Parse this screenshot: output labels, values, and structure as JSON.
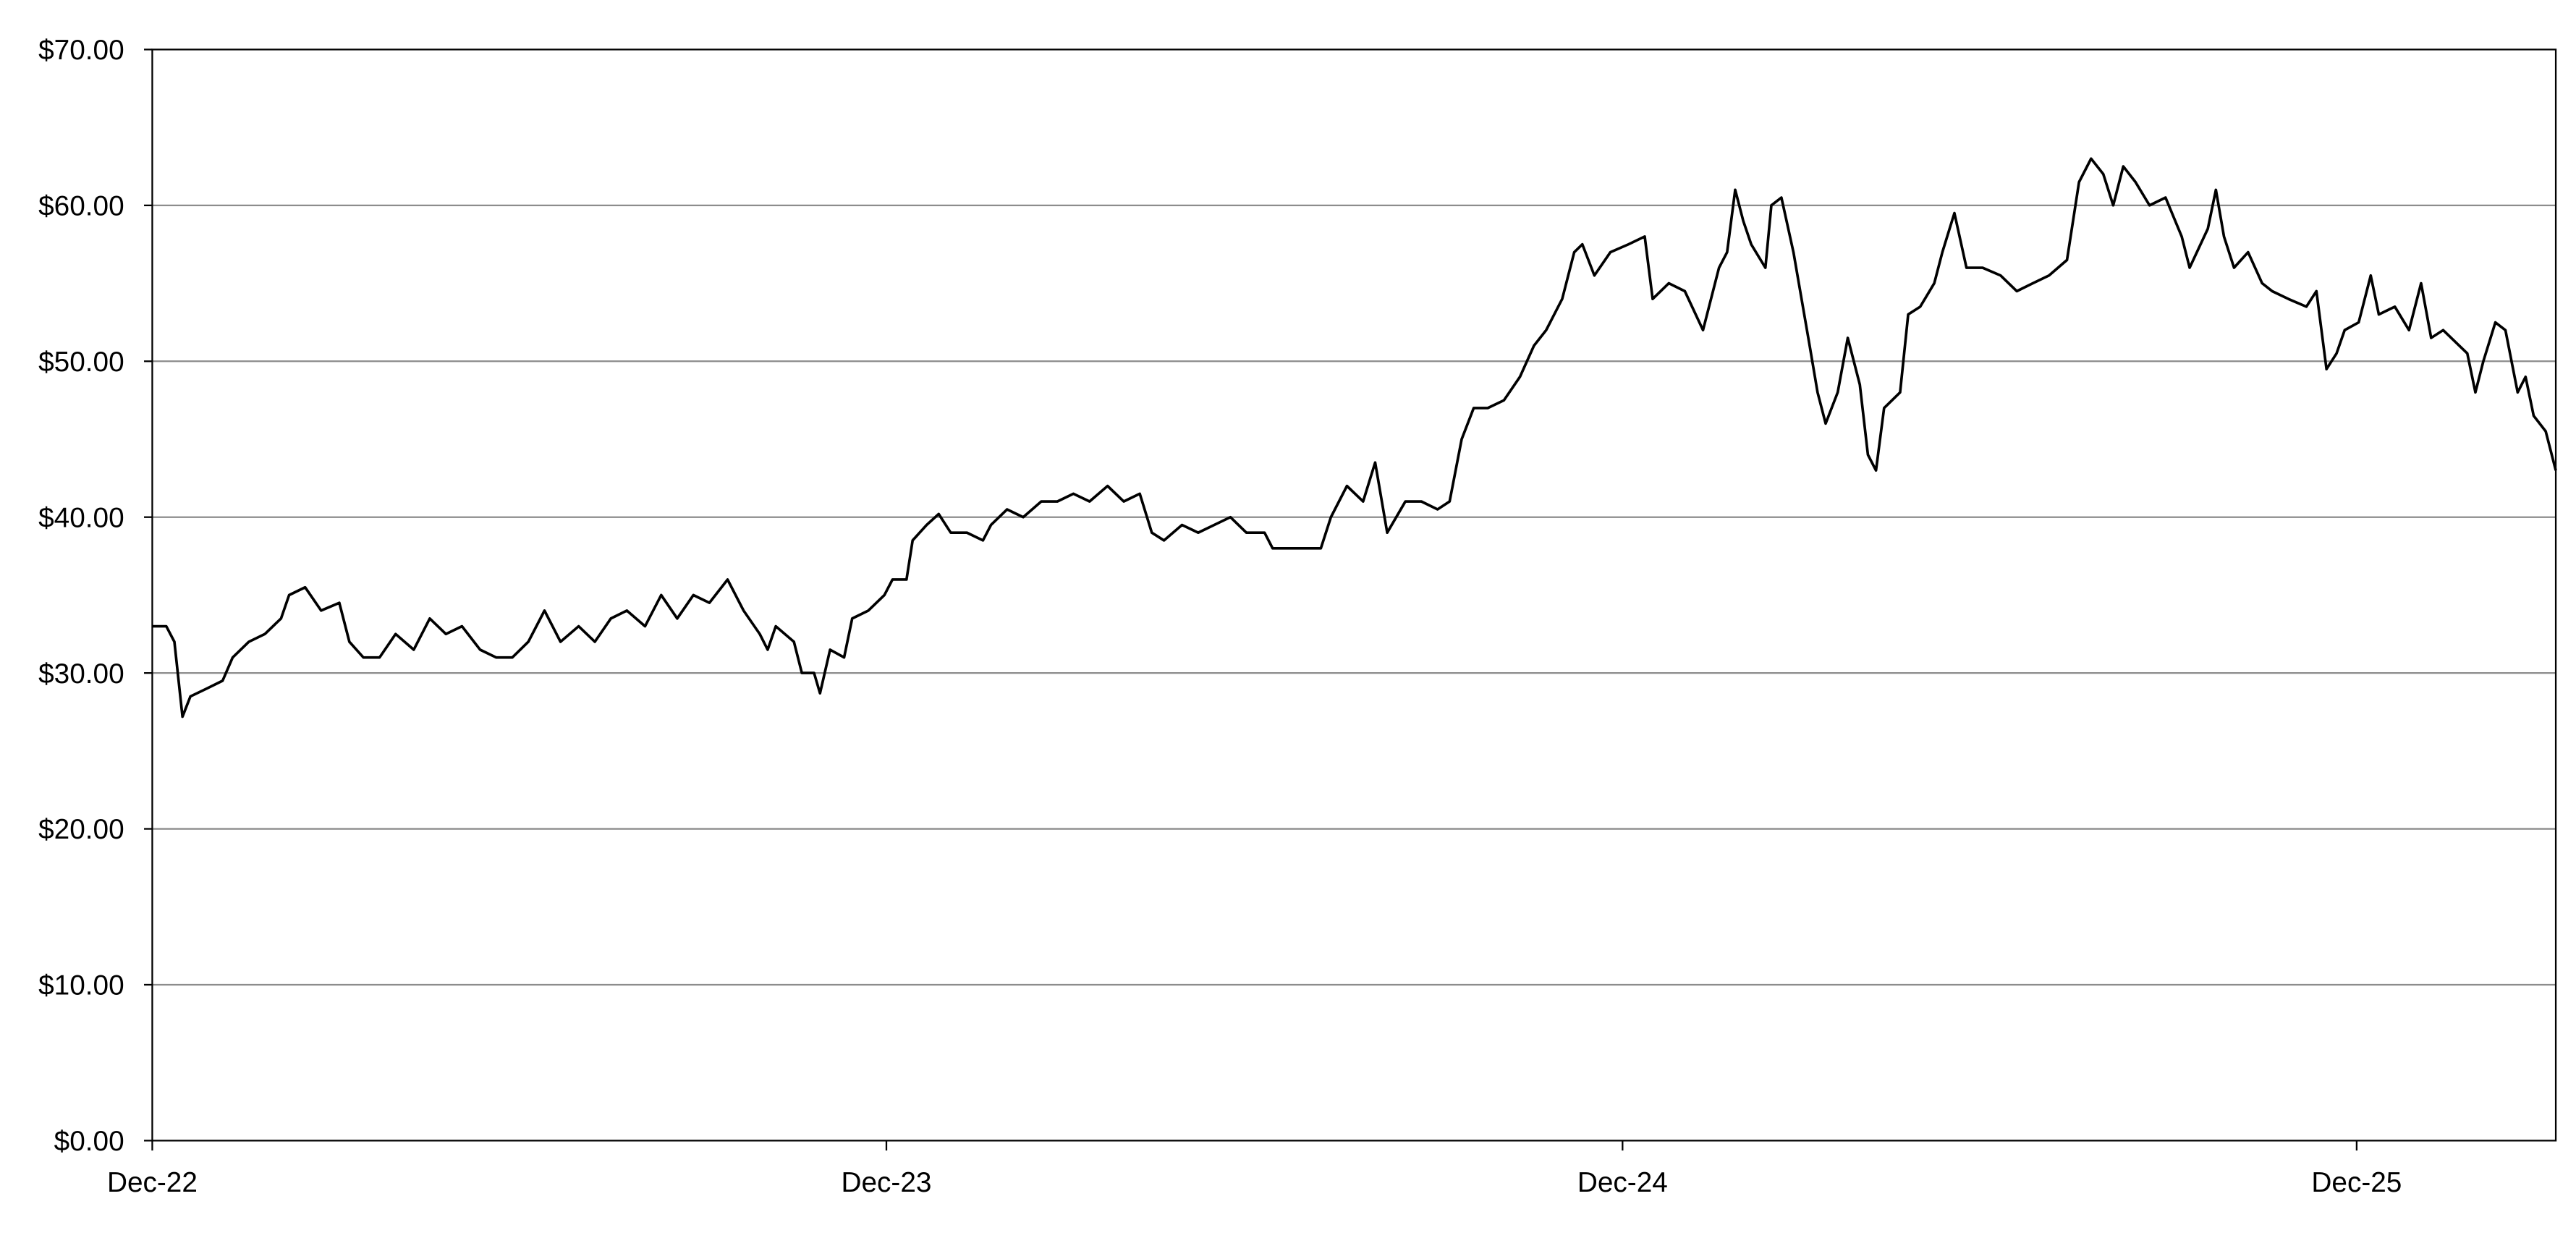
{
  "chart_data": {
    "type": "line",
    "title": "",
    "xlabel": "",
    "ylabel": "",
    "ylim": [
      0,
      70
    ],
    "xlim": [
      "2022-12-01",
      "2026-03-10"
    ],
    "grid": "horizontal",
    "line_color": "#000000",
    "grid_color": "#8c8c8c",
    "y_ticks": [
      0,
      10,
      20,
      30,
      40,
      50,
      60,
      70
    ],
    "y_tick_labels": [
      "$0.00",
      "$10.00",
      "$20.00",
      "$30.00",
      "$40.00",
      "$50.00",
      "$60.00",
      "$70.00"
    ],
    "x_ticks": [
      "2022-12-01",
      "2023-12-01",
      "2024-12-01",
      "2025-12-01"
    ],
    "x_tick_labels": [
      "Dec-22",
      "Dec-23",
      "Dec-24",
      "Dec-25"
    ],
    "series": [
      {
        "points": [
          [
            "2022-12-01",
            33
          ],
          [
            "2022-12-08",
            33
          ],
          [
            "2022-12-12",
            32
          ],
          [
            "2022-12-16",
            27.2
          ],
          [
            "2022-12-20",
            28.5
          ],
          [
            "2022-12-28",
            29
          ],
          [
            "2023-01-05",
            29.5
          ],
          [
            "2023-01-10",
            31
          ],
          [
            "2023-01-18",
            32
          ],
          [
            "2023-01-26",
            32.5
          ],
          [
            "2023-02-03",
            33.5
          ],
          [
            "2023-02-07",
            35
          ],
          [
            "2023-02-15",
            35.5
          ],
          [
            "2023-02-23",
            34
          ],
          [
            "2023-03-04",
            34.5
          ],
          [
            "2023-03-09",
            32
          ],
          [
            "2023-03-16",
            31
          ],
          [
            "2023-03-24",
            31
          ],
          [
            "2023-04-01",
            32.5
          ],
          [
            "2023-04-10",
            31.5
          ],
          [
            "2023-04-18",
            33.5
          ],
          [
            "2023-04-26",
            32.5
          ],
          [
            "2023-05-04",
            33
          ],
          [
            "2023-05-13",
            31.5
          ],
          [
            "2023-05-21",
            31
          ],
          [
            "2023-05-29",
            31
          ],
          [
            "2023-06-06",
            32
          ],
          [
            "2023-06-14",
            34
          ],
          [
            "2023-06-22",
            32
          ],
          [
            "2023-07-01",
            33
          ],
          [
            "2023-07-09",
            32
          ],
          [
            "2023-07-17",
            33.5
          ],
          [
            "2023-07-25",
            34
          ],
          [
            "2023-08-03",
            33
          ],
          [
            "2023-08-11",
            35
          ],
          [
            "2023-08-19",
            33.5
          ],
          [
            "2023-08-27",
            35
          ],
          [
            "2023-09-04",
            34.5
          ],
          [
            "2023-09-13",
            36
          ],
          [
            "2023-09-21",
            34
          ],
          [
            "2023-09-29",
            32.5
          ],
          [
            "2023-10-03",
            31.5
          ],
          [
            "2023-10-07",
            33
          ],
          [
            "2023-10-16",
            32
          ],
          [
            "2023-10-20",
            30
          ],
          [
            "2023-10-26",
            30
          ],
          [
            "2023-10-29",
            28.7
          ],
          [
            "2023-11-03",
            31.5
          ],
          [
            "2023-11-10",
            31
          ],
          [
            "2023-11-14",
            33.5
          ],
          [
            "2023-11-22",
            34
          ],
          [
            "2023-11-30",
            35
          ],
          [
            "2023-12-04",
            36
          ],
          [
            "2023-12-11",
            36
          ],
          [
            "2023-12-14",
            38.5
          ],
          [
            "2023-12-21",
            39.5
          ],
          [
            "2023-12-27",
            40.2
          ],
          [
            "2024-01-02",
            39
          ],
          [
            "2024-01-10",
            39
          ],
          [
            "2024-01-18",
            38.5
          ],
          [
            "2024-01-22",
            39.5
          ],
          [
            "2024-01-30",
            40.5
          ],
          [
            "2024-02-07",
            40
          ],
          [
            "2024-02-16",
            41
          ],
          [
            "2024-02-24",
            41
          ],
          [
            "2024-03-03",
            41.5
          ],
          [
            "2024-03-11",
            41
          ],
          [
            "2024-03-20",
            42
          ],
          [
            "2024-03-28",
            41
          ],
          [
            "2024-04-05",
            41.5
          ],
          [
            "2024-04-11",
            39
          ],
          [
            "2024-04-17",
            38.5
          ],
          [
            "2024-04-26",
            39.5
          ],
          [
            "2024-05-04",
            39
          ],
          [
            "2024-05-12",
            39.5
          ],
          [
            "2024-05-20",
            40
          ],
          [
            "2024-05-28",
            39
          ],
          [
            "2024-06-06",
            39
          ],
          [
            "2024-06-10",
            38
          ],
          [
            "2024-06-18",
            38
          ],
          [
            "2024-06-26",
            38
          ],
          [
            "2024-07-04",
            38
          ],
          [
            "2024-07-09",
            40
          ],
          [
            "2024-07-17",
            42
          ],
          [
            "2024-07-25",
            41
          ],
          [
            "2024-07-31",
            43.5
          ],
          [
            "2024-08-06",
            39
          ],
          [
            "2024-08-15",
            41
          ],
          [
            "2024-08-23",
            41
          ],
          [
            "2024-08-31",
            40.5
          ],
          [
            "2024-09-06",
            41
          ],
          [
            "2024-09-12",
            45
          ],
          [
            "2024-09-18",
            47
          ],
          [
            "2024-09-25",
            47
          ],
          [
            "2024-10-03",
            47.5
          ],
          [
            "2024-10-11",
            49
          ],
          [
            "2024-10-18",
            51
          ],
          [
            "2024-10-24",
            52
          ],
          [
            "2024-11-01",
            54
          ],
          [
            "2024-11-07",
            57
          ],
          [
            "2024-11-11",
            57.5
          ],
          [
            "2024-11-17",
            55.5
          ],
          [
            "2024-11-25",
            57
          ],
          [
            "2024-12-04",
            57.5
          ],
          [
            "2024-12-12",
            58
          ],
          [
            "2024-12-16",
            54
          ],
          [
            "2024-12-24",
            55
          ],
          [
            "2025-01-01",
            54.5
          ],
          [
            "2025-01-10",
            52
          ],
          [
            "2025-01-18",
            56
          ],
          [
            "2025-01-22",
            57
          ],
          [
            "2025-01-26",
            61
          ],
          [
            "2025-01-30",
            59
          ],
          [
            "2025-02-03",
            57.5
          ],
          [
            "2025-02-10",
            56
          ],
          [
            "2025-02-13",
            60
          ],
          [
            "2025-02-18",
            60.5
          ],
          [
            "2025-02-24",
            57
          ],
          [
            "2025-03-04",
            51
          ],
          [
            "2025-03-08",
            48
          ],
          [
            "2025-03-12",
            46
          ],
          [
            "2025-03-18",
            48
          ],
          [
            "2025-03-23",
            51.5
          ],
          [
            "2025-03-29",
            48.5
          ],
          [
            "2025-04-02",
            44
          ],
          [
            "2025-04-06",
            43
          ],
          [
            "2025-04-10",
            47
          ],
          [
            "2025-04-18",
            48
          ],
          [
            "2025-04-22",
            53
          ],
          [
            "2025-04-28",
            53.5
          ],
          [
            "2025-05-05",
            55
          ],
          [
            "2025-05-09",
            57
          ],
          [
            "2025-05-15",
            59.5
          ],
          [
            "2025-05-21",
            56
          ],
          [
            "2025-05-29",
            56
          ],
          [
            "2025-06-07",
            55.5
          ],
          [
            "2025-06-15",
            54.5
          ],
          [
            "2025-06-23",
            55
          ],
          [
            "2025-07-01",
            55.5
          ],
          [
            "2025-07-10",
            56.5
          ],
          [
            "2025-07-16",
            61.5
          ],
          [
            "2025-07-22",
            63
          ],
          [
            "2025-07-28",
            62
          ],
          [
            "2025-08-02",
            60
          ],
          [
            "2025-08-07",
            62.5
          ],
          [
            "2025-08-13",
            61.5
          ],
          [
            "2025-08-20",
            60
          ],
          [
            "2025-08-28",
            60.5
          ],
          [
            "2025-09-05",
            58
          ],
          [
            "2025-09-09",
            56
          ],
          [
            "2025-09-18",
            58.5
          ],
          [
            "2025-09-22",
            61
          ],
          [
            "2025-09-26",
            58
          ],
          [
            "2025-10-01",
            56
          ],
          [
            "2025-10-08",
            57
          ],
          [
            "2025-10-15",
            55
          ],
          [
            "2025-10-20",
            54.5
          ],
          [
            "2025-10-28",
            54
          ],
          [
            "2025-11-06",
            53.5
          ],
          [
            "2025-11-11",
            54.5
          ],
          [
            "2025-11-16",
            49.5
          ],
          [
            "2025-11-21",
            50.5
          ],
          [
            "2025-11-25",
            52
          ],
          [
            "2025-12-02",
            52.5
          ],
          [
            "2025-12-08",
            55.5
          ],
          [
            "2025-12-12",
            53
          ],
          [
            "2025-12-20",
            53.5
          ],
          [
            "2025-12-27",
            52
          ],
          [
            "2026-01-02",
            55
          ],
          [
            "2026-01-07",
            51.5
          ],
          [
            "2026-01-13",
            52
          ],
          [
            "2026-01-21",
            51
          ],
          [
            "2026-01-25",
            50.5
          ],
          [
            "2026-01-29",
            48
          ],
          [
            "2026-02-02",
            50
          ],
          [
            "2026-02-08",
            52.5
          ],
          [
            "2026-02-13",
            52
          ],
          [
            "2026-02-19",
            48
          ],
          [
            "2026-02-23",
            49
          ],
          [
            "2026-02-27",
            46.5
          ],
          [
            "2026-03-05",
            45.5
          ],
          [
            "2026-03-10",
            43
          ]
        ]
      }
    ]
  }
}
